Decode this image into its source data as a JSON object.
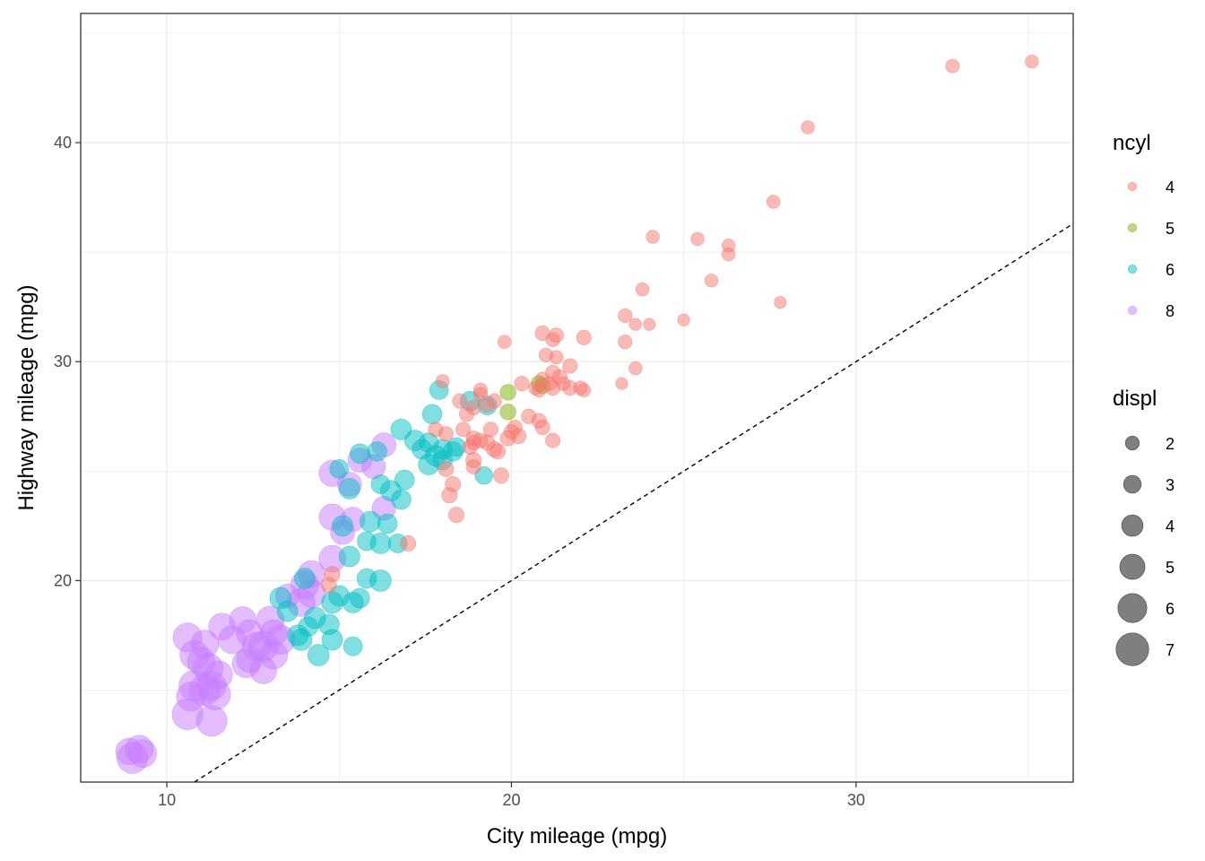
{
  "chart_data": {
    "type": "scatter",
    "xlabel": "City mileage (mpg)",
    "ylabel": "Highway mileage (mpg)",
    "xlim": [
      7.5,
      36.3
    ],
    "ylim": [
      10.8,
      45.9
    ],
    "x_ticks": [
      10,
      20,
      30
    ],
    "y_ticks": [
      20,
      30,
      40
    ],
    "grid": true,
    "reference_line": {
      "type": "y=x",
      "style": "dashed"
    },
    "legend_position": "right",
    "color_legend": {
      "title": "ncyl",
      "items": [
        {
          "label": "4",
          "color": "#F8766D"
        },
        {
          "label": "5",
          "color": "#7CAE00"
        },
        {
          "label": "6",
          "color": "#00BFC4"
        },
        {
          "label": "8",
          "color": "#C77CFF"
        }
      ]
    },
    "size_legend": {
      "title": "displ",
      "items": [
        {
          "label": "2",
          "value": 2
        },
        {
          "label": "3",
          "value": 3
        },
        {
          "label": "4",
          "value": 4
        },
        {
          "label": "5",
          "value": 5
        },
        {
          "label": "6",
          "value": 6
        },
        {
          "label": "7",
          "value": 7
        }
      ]
    },
    "series": [
      {
        "name": "4",
        "color": "#F8766D",
        "points": [
          [
            35.1,
            43.7,
            1.8
          ],
          [
            32.8,
            43.5,
            1.9
          ],
          [
            28.6,
            40.7,
            1.8
          ],
          [
            27.6,
            37.3,
            1.8
          ],
          [
            24.1,
            35.7,
            1.8
          ],
          [
            25.4,
            35.6,
            1.8
          ],
          [
            26.3,
            35.3,
            1.8
          ],
          [
            26.3,
            34.9,
            1.8
          ],
          [
            25.8,
            33.7,
            1.8
          ],
          [
            23.8,
            33.3,
            1.8
          ],
          [
            27.8,
            32.7,
            1.5
          ],
          [
            23.3,
            32.1,
            2.0
          ],
          [
            23.6,
            31.7,
            1.5
          ],
          [
            24.0,
            31.7,
            1.5
          ],
          [
            25.0,
            31.9,
            1.5
          ],
          [
            22.1,
            31.1,
            2.2
          ],
          [
            21.3,
            31.2,
            2.2
          ],
          [
            20.9,
            31.3,
            2.2
          ],
          [
            21.2,
            31.0,
            2.0
          ],
          [
            19.8,
            30.9,
            1.8
          ],
          [
            23.3,
            30.9,
            2.0
          ],
          [
            21.0,
            30.3,
            2.0
          ],
          [
            21.3,
            30.2,
            1.9
          ],
          [
            21.7,
            29.8,
            2.2
          ],
          [
            23.6,
            29.7,
            1.8
          ],
          [
            21.2,
            29.5,
            2.2
          ],
          [
            20.9,
            29.2,
            2.0
          ],
          [
            21.1,
            29.0,
            2.0
          ],
          [
            21.5,
            29.0,
            2.0
          ],
          [
            21.7,
            28.8,
            2.2
          ],
          [
            22.0,
            28.8,
            2.0
          ],
          [
            22.1,
            28.7,
            1.9
          ],
          [
            20.7,
            28.8,
            2.0
          ],
          [
            20.8,
            28.7,
            2.0
          ],
          [
            21.2,
            28.8,
            2.2
          ],
          [
            23.2,
            29.0,
            1.5
          ],
          [
            18.0,
            29.1,
            1.9
          ],
          [
            19.1,
            28.7,
            2.0
          ],
          [
            19.1,
            28.5,
            2.0
          ],
          [
            19.5,
            28.2,
            2.2
          ],
          [
            18.5,
            28.2,
            2.2
          ],
          [
            18.9,
            27.9,
            2.2
          ],
          [
            19.3,
            28.0,
            2.0
          ],
          [
            18.7,
            27.6,
            2.2
          ],
          [
            20.5,
            27.5,
            2.2
          ],
          [
            20.8,
            27.3,
            2.2
          ],
          [
            20.9,
            27.0,
            2.2
          ],
          [
            19.4,
            26.9,
            2.2
          ],
          [
            20.0,
            26.8,
            2.2
          ],
          [
            18.6,
            26.9,
            2.2
          ],
          [
            17.8,
            26.9,
            2.2
          ],
          [
            18.1,
            26.7,
            2.2
          ],
          [
            19.1,
            26.4,
            2.2
          ],
          [
            20.2,
            26.6,
            2.4
          ],
          [
            19.9,
            26.5,
            2.4
          ],
          [
            18.9,
            26.3,
            2.2
          ],
          [
            18.8,
            26.1,
            2.2
          ],
          [
            21.2,
            26.4,
            2.2
          ],
          [
            19.6,
            25.9,
            2.4
          ],
          [
            18.9,
            25.5,
            2.4
          ],
          [
            19.7,
            24.8,
            2.4
          ],
          [
            18.1,
            25.1,
            2.4
          ],
          [
            18.9,
            25.2,
            2.2
          ],
          [
            18.3,
            24.4,
            2.4
          ],
          [
            18.2,
            23.9,
            2.4
          ],
          [
            18.4,
            23.0,
            2.4
          ],
          [
            17.0,
            21.7,
            2.4
          ],
          [
            14.7,
            19.8,
            2.4
          ],
          [
            14.8,
            20.3,
            2.4
          ],
          [
            18.9,
            26.5,
            2.2
          ],
          [
            19.3,
            26.3,
            2.4
          ],
          [
            19.5,
            26.0,
            2.4
          ],
          [
            20.1,
            27.0,
            2.2
          ],
          [
            21.4,
            29.3,
            2.2
          ],
          [
            20.3,
            29.0,
            2.2
          ]
        ]
      },
      {
        "name": "5",
        "color": "#7CAE00",
        "points": [
          [
            19.9,
            28.6,
            2.5
          ],
          [
            20.9,
            28.9,
            2.5
          ],
          [
            20.8,
            29.0,
            2.5
          ],
          [
            19.9,
            27.7,
            2.5
          ]
        ]
      },
      {
        "name": "6",
        "color": "#00BFC4",
        "points": [
          [
            17.9,
            28.7,
            3.3
          ],
          [
            18.8,
            28.2,
            3.5
          ],
          [
            19.3,
            28.0,
            3.3
          ],
          [
            17.7,
            27.6,
            3.5
          ],
          [
            16.8,
            26.9,
            3.8
          ],
          [
            17.2,
            26.4,
            3.8
          ],
          [
            17.6,
            26.3,
            3.5
          ],
          [
            18.0,
            26.0,
            3.5
          ],
          [
            18.4,
            26.1,
            3.3
          ],
          [
            17.4,
            26.0,
            3.5
          ],
          [
            17.8,
            25.7,
            3.8
          ],
          [
            18.3,
            25.9,
            3.5
          ],
          [
            17.6,
            25.3,
            3.8
          ],
          [
            18.0,
            25.5,
            3.5
          ],
          [
            19.2,
            24.8,
            3.0
          ],
          [
            16.1,
            25.9,
            3.5
          ],
          [
            15.6,
            25.8,
            3.5
          ],
          [
            15.0,
            25.1,
            3.3
          ],
          [
            16.9,
            24.6,
            3.5
          ],
          [
            16.5,
            24.1,
            3.8
          ],
          [
            16.2,
            24.4,
            3.3
          ],
          [
            16.8,
            23.7,
            3.5
          ],
          [
            15.3,
            24.2,
            3.8
          ],
          [
            15.9,
            22.7,
            3.8
          ],
          [
            16.4,
            22.6,
            3.5
          ],
          [
            15.1,
            22.5,
            3.8
          ],
          [
            15.3,
            21.1,
            3.8
          ],
          [
            15.8,
            21.8,
            3.3
          ],
          [
            16.2,
            21.7,
            3.8
          ],
          [
            16.7,
            21.7,
            3.3
          ],
          [
            16.2,
            20.0,
            4.0
          ],
          [
            15.8,
            20.1,
            3.5
          ],
          [
            14.0,
            20.1,
            3.8
          ],
          [
            15.0,
            19.3,
            3.8
          ],
          [
            15.6,
            19.2,
            3.5
          ],
          [
            15.4,
            19.0,
            3.8
          ],
          [
            14.8,
            19.0,
            4.0
          ],
          [
            13.3,
            19.2,
            4.0
          ],
          [
            13.5,
            18.6,
            3.8
          ],
          [
            14.3,
            18.3,
            4.0
          ],
          [
            14.7,
            18.0,
            3.8
          ],
          [
            14.1,
            17.9,
            3.5
          ],
          [
            14.8,
            17.3,
            3.8
          ],
          [
            15.4,
            17.0,
            3.3
          ],
          [
            13.9,
            17.3,
            4.0
          ],
          [
            13.8,
            17.5,
            3.8
          ],
          [
            14.4,
            16.6,
            4.0
          ]
        ]
      },
      {
        "name": "8",
        "color": "#C77CFF",
        "points": [
          [
            16.3,
            26.2,
            4.7
          ],
          [
            15.6,
            25.5,
            4.7
          ],
          [
            16.0,
            25.2,
            4.6
          ],
          [
            14.8,
            24.9,
            5.3
          ],
          [
            15.3,
            24.4,
            4.7
          ],
          [
            15.4,
            22.8,
            4.7
          ],
          [
            14.8,
            22.9,
            5.3
          ],
          [
            15.1,
            22.2,
            4.7
          ],
          [
            16.3,
            23.3,
            4.6
          ],
          [
            14.8,
            21.0,
            5.4
          ],
          [
            14.2,
            20.3,
            5.4
          ],
          [
            14.0,
            19.8,
            5.7
          ],
          [
            14.2,
            19.4,
            5.7
          ],
          [
            13.5,
            19.3,
            4.6
          ],
          [
            13.9,
            19.0,
            5.7
          ],
          [
            13.0,
            18.2,
            5.7
          ],
          [
            12.2,
            18.2,
            5.4
          ],
          [
            12.4,
            17.6,
            5.4
          ],
          [
            11.6,
            17.9,
            5.4
          ],
          [
            11.9,
            17.3,
            5.7
          ],
          [
            12.8,
            17.0,
            6.2
          ],
          [
            13.3,
            17.3,
            6.0
          ],
          [
            12.6,
            17.0,
            5.9
          ],
          [
            13.1,
            16.6,
            5.7
          ],
          [
            12.8,
            15.9,
            5.4
          ],
          [
            12.3,
            16.2,
            5.7
          ],
          [
            12.4,
            16.4,
            5.2
          ],
          [
            10.6,
            17.4,
            6.0
          ],
          [
            11.1,
            17.1,
            5.7
          ],
          [
            10.8,
            16.6,
            6.0
          ],
          [
            11.0,
            16.3,
            5.7
          ],
          [
            11.2,
            16.0,
            6.2
          ],
          [
            11.5,
            15.7,
            5.7
          ],
          [
            10.8,
            15.2,
            6.5
          ],
          [
            11.1,
            15.0,
            6.5
          ],
          [
            11.3,
            15.2,
            6.0
          ],
          [
            10.7,
            14.7,
            6.0
          ],
          [
            11.4,
            14.8,
            6.5
          ],
          [
            10.6,
            13.9,
            6.5
          ],
          [
            11.3,
            13.6,
            6.5
          ],
          [
            8.9,
            12.2,
            5.3
          ],
          [
            9.2,
            12.3,
            5.7
          ],
          [
            9.0,
            11.9,
            6.5
          ],
          [
            9.3,
            12.1,
            5.7
          ],
          [
            13.1,
            17.6,
            5.4
          ]
        ]
      }
    ]
  }
}
